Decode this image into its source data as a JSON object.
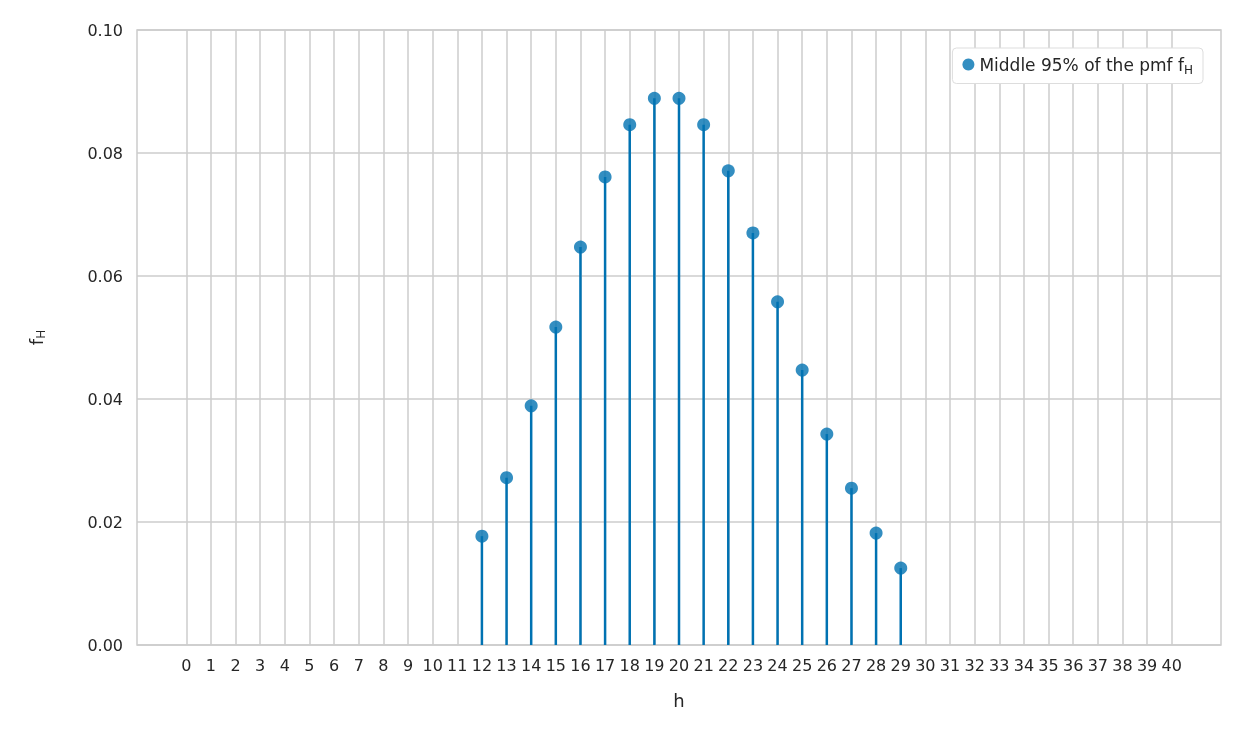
{
  "chart_data": {
    "type": "lollipop",
    "xlabel": "h",
    "ylabel": "f$_{H}$",
    "x": [
      12,
      13,
      14,
      15,
      16,
      17,
      18,
      19,
      20,
      21,
      22,
      23,
      24,
      25,
      26,
      27,
      28,
      29
    ],
    "series": [
      {
        "name": "Middle 95% of the pmf f$_{H}$",
        "color": "#0072b2",
        "values": [
          0.0177,
          0.0272,
          0.0389,
          0.0517,
          0.0647,
          0.0761,
          0.0846,
          0.0889,
          0.0889,
          0.0846,
          0.0771,
          0.067,
          0.0558,
          0.0447,
          0.0343,
          0.0255,
          0.0182,
          0.0125
        ]
      }
    ],
    "xlim": [
      -2,
      42
    ],
    "xticks": [
      0,
      1,
      2,
      3,
      4,
      5,
      6,
      7,
      8,
      9,
      10,
      11,
      12,
      13,
      14,
      15,
      16,
      17,
      18,
      19,
      20,
      21,
      22,
      23,
      24,
      25,
      26,
      27,
      28,
      29,
      30,
      31,
      32,
      33,
      34,
      35,
      36,
      37,
      38,
      39,
      40
    ],
    "ylim": [
      0,
      0.1
    ],
    "yticks": [
      {
        "value": 0,
        "label": "0.00"
      },
      {
        "value": 0.02,
        "label": "0.02"
      },
      {
        "value": 0.04,
        "label": "0.04"
      },
      {
        "value": 0.06,
        "label": "0.06"
      },
      {
        "value": 0.08,
        "label": "0.08"
      },
      {
        "value": 0.1,
        "label": "0.10"
      }
    ],
    "grid": true,
    "legend": "top right",
    "marker": "circle"
  }
}
